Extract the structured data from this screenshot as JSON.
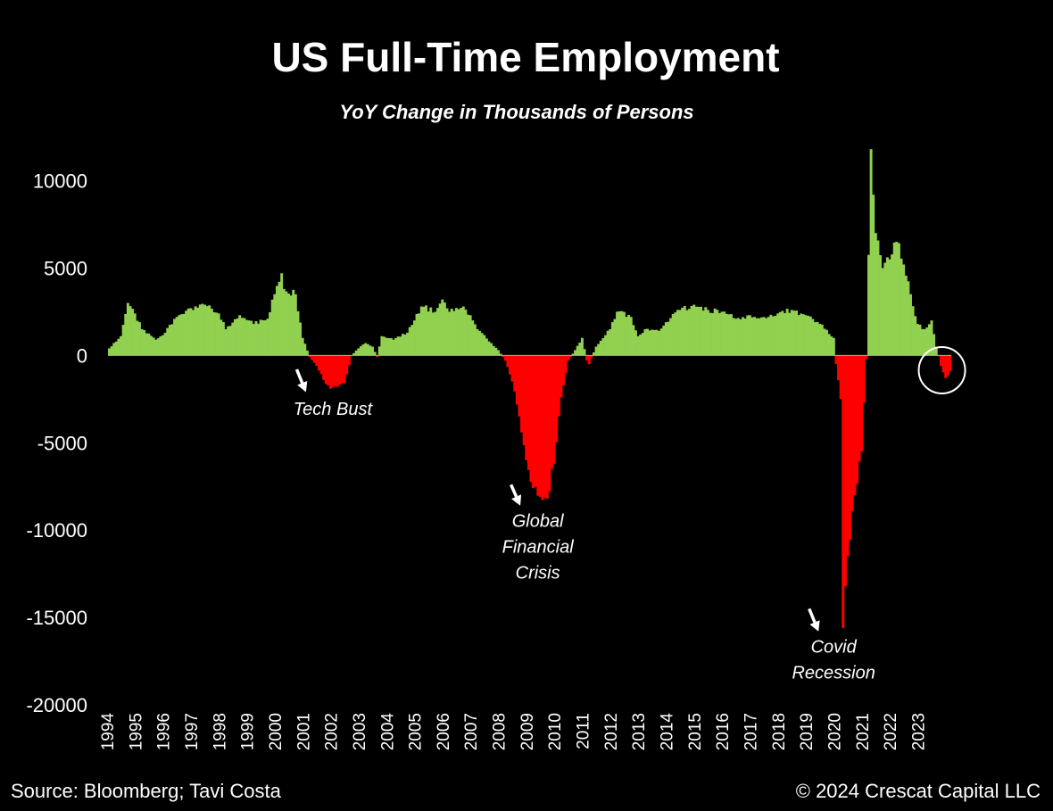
{
  "chart_data": {
    "type": "bar",
    "title": "US Full-Time Employment",
    "subtitle": "YoY Change in Thousands of Persons",
    "xlabel": "",
    "ylabel": "",
    "ylim": [
      -20000,
      12000
    ],
    "yticks": [
      10000,
      5000,
      0,
      -5000,
      -10000,
      -15000,
      -20000
    ],
    "ytick_labels": [
      "10000",
      "5000",
      "0",
      "-5000",
      "-10000",
      "-15000",
      "-20000"
    ],
    "x_start": "1994-01",
    "x_end": "2024-02",
    "x_ticks": [
      "1994",
      "1995",
      "1996",
      "1997",
      "1998",
      "1999",
      "2000",
      "2001",
      "2002",
      "2003",
      "2004",
      "2005",
      "2006",
      "2007",
      "2008",
      "2009",
      "2010",
      "2011",
      "2012",
      "2013",
      "2014",
      "2015",
      "2016",
      "2017",
      "2018",
      "2019",
      "2020",
      "2021",
      "2022",
      "2023"
    ],
    "positive_color": "#92d050",
    "negative_color": "#ff0000",
    "grid": false,
    "legend": "none",
    "anchors": [
      [
        "1994-01",
        400
      ],
      [
        "1994-06",
        1100
      ],
      [
        "1994-09",
        3000
      ],
      [
        "1994-12",
        2400
      ],
      [
        "1995-03",
        1500
      ],
      [
        "1995-09",
        900
      ],
      [
        "1996-01",
        1300
      ],
      [
        "1996-06",
        2200
      ],
      [
        "1996-12",
        2700
      ],
      [
        "1997-06",
        2900
      ],
      [
        "1997-12",
        2400
      ],
      [
        "1998-03",
        1500
      ],
      [
        "1998-09",
        2300
      ],
      [
        "1999-03",
        1800
      ],
      [
        "1999-09",
        2100
      ],
      [
        "1999-12",
        3500
      ],
      [
        "2000-03",
        4700
      ],
      [
        "2000-04",
        3800
      ],
      [
        "2000-09",
        3500
      ],
      [
        "2000-12",
        1000
      ],
      [
        "2001-03",
        -100
      ],
      [
        "2001-06",
        -600
      ],
      [
        "2001-09",
        -1400
      ],
      [
        "2001-12",
        -1900
      ],
      [
        "2002-03",
        -1800
      ],
      [
        "2002-06",
        -1600
      ],
      [
        "2002-09",
        0
      ],
      [
        "2002-12",
        400
      ],
      [
        "2003-03",
        700
      ],
      [
        "2003-06",
        500
      ],
      [
        "2003-08",
        -100
      ],
      [
        "2003-10",
        1100
      ],
      [
        "2004-03",
        900
      ],
      [
        "2004-09",
        1300
      ],
      [
        "2004-12",
        2000
      ],
      [
        "2005-03",
        2800
      ],
      [
        "2005-09",
        2500
      ],
      [
        "2005-12",
        3200
      ],
      [
        "2006-03",
        2500
      ],
      [
        "2006-09",
        2800
      ],
      [
        "2006-12",
        2300
      ],
      [
        "2007-03",
        1500
      ],
      [
        "2007-09",
        700
      ],
      [
        "2007-12",
        300
      ],
      [
        "2008-03",
        -300
      ],
      [
        "2008-06",
        -1500
      ],
      [
        "2008-09",
        -3500
      ],
      [
        "2008-12",
        -6000
      ],
      [
        "2009-03",
        -7600
      ],
      [
        "2009-06",
        -8100
      ],
      [
        "2009-09",
        -8200
      ],
      [
        "2009-12",
        -6200
      ],
      [
        "2010-03",
        -2400
      ],
      [
        "2010-06",
        -300
      ],
      [
        "2010-09",
        300
      ],
      [
        "2010-12",
        1000
      ],
      [
        "2011-02",
        -300
      ],
      [
        "2011-03",
        -500
      ],
      [
        "2011-06",
        500
      ],
      [
        "2011-12",
        1500
      ],
      [
        "2012-03",
        2500
      ],
      [
        "2012-09",
        2200
      ],
      [
        "2012-12",
        1100
      ],
      [
        "2013-03",
        1500
      ],
      [
        "2013-09",
        1400
      ],
      [
        "2013-12",
        1900
      ],
      [
        "2014-06",
        2600
      ],
      [
        "2014-12",
        2900
      ],
      [
        "2015-06",
        2600
      ],
      [
        "2015-12",
        2500
      ],
      [
        "2016-06",
        2100
      ],
      [
        "2016-12",
        2300
      ],
      [
        "2017-06",
        2200
      ],
      [
        "2017-12",
        2400
      ],
      [
        "2018-06",
        2600
      ],
      [
        "2018-12",
        2300
      ],
      [
        "2019-06",
        1800
      ],
      [
        "2019-12",
        1000
      ],
      [
        "2020-01",
        -500
      ],
      [
        "2020-03",
        -2500
      ],
      [
        "2020-04",
        -15600
      ],
      [
        "2020-06",
        -11500
      ],
      [
        "2020-09",
        -8000
      ],
      [
        "2020-12",
        -5500
      ],
      [
        "2021-02",
        -200
      ],
      [
        "2021-04",
        11800
      ],
      [
        "2021-06",
        7000
      ],
      [
        "2021-09",
        5000
      ],
      [
        "2021-12",
        5500
      ],
      [
        "2022-03",
        6500
      ],
      [
        "2022-06",
        5200
      ],
      [
        "2022-09",
        3500
      ],
      [
        "2022-12",
        1800
      ],
      [
        "2023-03",
        1500
      ],
      [
        "2023-06",
        2000
      ],
      [
        "2023-08",
        500
      ],
      [
        "2023-10",
        -600
      ],
      [
        "2023-12",
        -1300
      ],
      [
        "2024-02",
        -900
      ]
    ],
    "annotations": [
      {
        "lines": [
          "Tech Bust"
        ],
        "at": "2002-01",
        "value": -3400
      },
      {
        "lines": [
          "Global",
          "Financial",
          "Crisis"
        ],
        "at": "2009-05",
        "value": -9800
      },
      {
        "lines": [
          "Covid",
          "Recession"
        ],
        "at": "2019-12",
        "value": -17000
      }
    ],
    "arrows": [
      {
        "from_x": "2000-10",
        "from_value": -800,
        "to_x": "2001-02",
        "to_value": -2100
      },
      {
        "from_x": "2008-06",
        "from_value": -7400,
        "to_x": "2008-10",
        "to_value": -8600
      },
      {
        "from_x": "2019-02",
        "from_value": -14500,
        "to_x": "2019-06",
        "to_value": -15800
      }
    ],
    "highlight_circle": {
      "x": "2023-11",
      "value": -850
    }
  },
  "footer": {
    "source": "Source: Bloomberg; Tavi Costa",
    "copyright": "© 2024 Crescat Capital LLC"
  }
}
